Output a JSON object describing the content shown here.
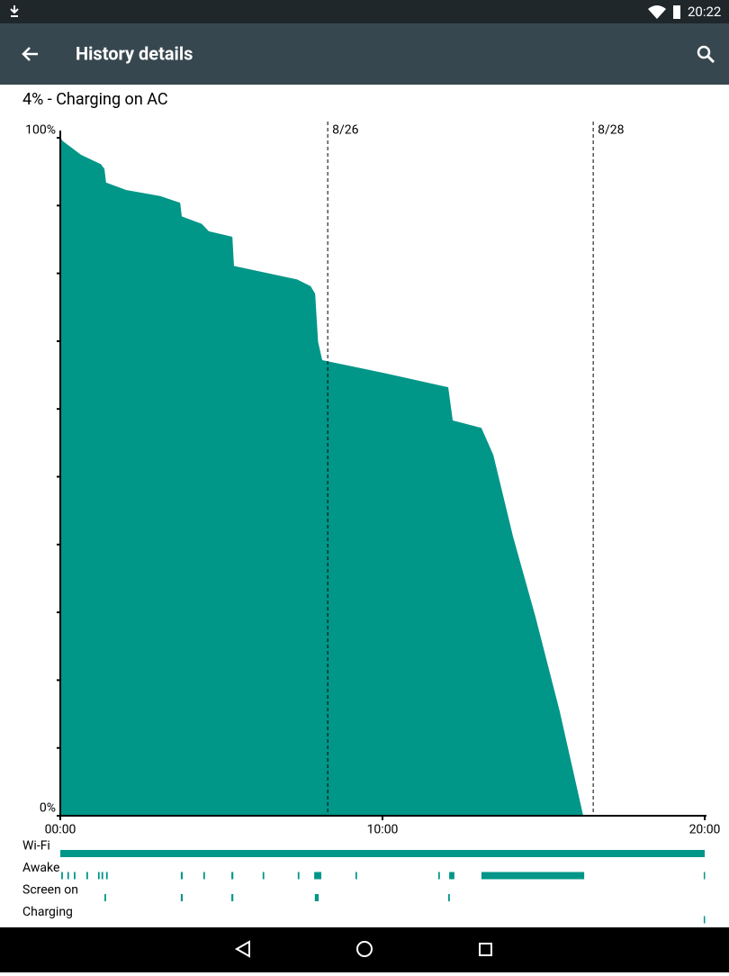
{
  "status_bar": {
    "time": "20:22"
  },
  "app_bar": {
    "title": "History details"
  },
  "summary": "4% - Charging on AC",
  "chart_data": {
    "type": "area",
    "color": "#009688",
    "x": [
      0,
      0.08,
      0.64,
      1.26,
      1.37,
      1.42,
      2.04,
      3.1,
      3.72,
      3.77,
      4.39,
      4.61,
      5.34,
      5.39,
      7.35,
      7.77,
      7.91,
      8.0,
      8.13,
      10.14,
      12.04,
      12.18,
      13.07,
      13.44,
      14.05,
      14.75,
      15.5,
      16.23
    ],
    "values": [
      100,
      99.5,
      97.5,
      96.1,
      95.4,
      93.4,
      92.3,
      91.4,
      90.4,
      88.4,
      87.3,
      86.2,
      85.4,
      81.1,
      79.1,
      78.1,
      77,
      69.9,
      67.2,
      65.2,
      63.2,
      58.3,
      57.2,
      53.2,
      41.2,
      29.3,
      15.4,
      0
    ],
    "xlim": [
      0,
      20
    ],
    "ylim": [
      0,
      100
    ],
    "xticks": [
      {
        "value": 0,
        "label": "00:00"
      },
      {
        "value": 10,
        "label": "10:00"
      },
      {
        "value": 20,
        "label": "20:00"
      }
    ],
    "yticks": [
      {
        "value": 0,
        "label": "0%"
      },
      {
        "value": 100,
        "label": "100%"
      }
    ],
    "minor_yticks": [
      10,
      20,
      30,
      40,
      50,
      60,
      70,
      80,
      90
    ],
    "date_markers": [
      {
        "value": 8.3,
        "label": "8/26"
      },
      {
        "value": 16.54,
        "label": "8/28"
      }
    ],
    "tracks": [
      {
        "name": "Wi-Fi",
        "segments": [
          [
            0,
            20
          ]
        ]
      },
      {
        "name": "Awake",
        "segments": [
          [
            0.03,
            0.08
          ],
          [
            0.22,
            0.27
          ],
          [
            0.42,
            0.47
          ],
          [
            0.81,
            0.86
          ],
          [
            1.17,
            1.22
          ],
          [
            1.28,
            1.33
          ],
          [
            1.42,
            1.47
          ],
          [
            3.74,
            3.8
          ],
          [
            4.44,
            4.49
          ],
          [
            5.31,
            5.37
          ],
          [
            6.28,
            6.33
          ],
          [
            7.37,
            7.42
          ],
          [
            7.88,
            8.1
          ],
          [
            9.16,
            9.21
          ],
          [
            11.73,
            11.78
          ],
          [
            12.07,
            12.23
          ],
          [
            13.07,
            16.26
          ],
          [
            19.97,
            20
          ]
        ]
      },
      {
        "name": "Screen on",
        "segments": [
          [
            1.37,
            1.42
          ],
          [
            3.74,
            3.8
          ],
          [
            5.31,
            5.37
          ],
          [
            7.9,
            8.02
          ],
          [
            12.04,
            12.09
          ]
        ]
      },
      {
        "name": "Charging",
        "segments": [
          [
            19.97,
            20
          ]
        ]
      }
    ]
  }
}
